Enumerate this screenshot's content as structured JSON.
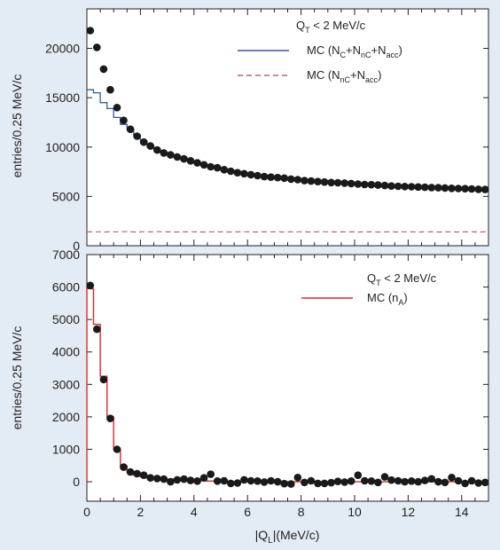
{
  "chart_data": [
    {
      "type": "scatter",
      "ylabel": "entries/0.25 MeV/c",
      "xlim": [
        0,
        15
      ],
      "ylim": [
        0,
        24000
      ],
      "yticks": [
        0,
        5000,
        10000,
        15000,
        20000
      ],
      "annotation": {
        "q": "Q",
        "sub": "T",
        "rest": " < 2 MeV/c"
      },
      "legend": [
        {
          "color": "#2e5aa8",
          "style": "solid",
          "parts": [
            [
              "MC (N",
              ""
            ],
            [
              "C",
              "sub"
            ],
            [
              "+N",
              ""
            ],
            [
              "nC",
              "sub"
            ],
            [
              "+N",
              ""
            ],
            [
              "acc",
              "sub"
            ],
            [
              ")",
              ""
            ]
          ]
        },
        {
          "color": "#c05a8c",
          "style": "dashed",
          "parts": [
            [
              "MC (N",
              ""
            ],
            [
              "nC",
              "sub"
            ],
            [
              "+N",
              ""
            ],
            [
              "acc",
              "sub"
            ],
            [
              ")",
              ""
            ]
          ]
        }
      ],
      "points": {
        "x": [
          0.125,
          0.375,
          0.625,
          0.875,
          1.125,
          1.375,
          1.625,
          1.875,
          2.125,
          2.375,
          2.625,
          2.875,
          3.125,
          3.375,
          3.625,
          3.875,
          4.125,
          4.375,
          4.625,
          4.875,
          5.125,
          5.375,
          5.625,
          5.875,
          6.125,
          6.375,
          6.625,
          6.875,
          7.125,
          7.375,
          7.625,
          7.875,
          8.125,
          8.375,
          8.625,
          8.875,
          9.125,
          9.375,
          9.625,
          9.875,
          10.125,
          10.375,
          10.625,
          10.875,
          11.125,
          11.375,
          11.625,
          11.875,
          12.125,
          12.375,
          12.625,
          12.875,
          13.125,
          13.375,
          13.625,
          13.875,
          14.125,
          14.375,
          14.625,
          14.875
        ],
        "y": [
          21800,
          20100,
          17900,
          15800,
          14000,
          12700,
          11800,
          11100,
          10500,
          10100,
          9700,
          9400,
          9200,
          9000,
          8800,
          8600,
          8400,
          8200,
          8000,
          7900,
          7700,
          7550,
          7400,
          7300,
          7200,
          7100,
          7000,
          6950,
          6900,
          6850,
          6750,
          6700,
          6600,
          6550,
          6500,
          6450,
          6400,
          6380,
          6350,
          6300,
          6250,
          6200,
          6180,
          6150,
          6100,
          6050,
          6020,
          6000,
          5980,
          5950,
          5920,
          5900,
          5880,
          5850,
          5820,
          5800,
          5780,
          5750,
          5720,
          5700
        ]
      },
      "mc_total": [
        15800,
        15500,
        14500,
        13900,
        13000,
        12300,
        11800,
        11200,
        10600,
        10100,
        9700,
        9400,
        9200,
        9000,
        8800,
        8600,
        8400,
        8200,
        8050,
        7900,
        7750,
        7600,
        7450,
        7300,
        7200,
        7100,
        7000,
        6950,
        6900,
        6850,
        6750,
        6700,
        6600,
        6550,
        6500,
        6450,
        6400,
        6380,
        6350,
        6300,
        6250,
        6200,
        6180,
        6150,
        6100,
        6050,
        6020,
        6000,
        5980,
        5950,
        5920,
        5900,
        5880,
        5850,
        5820,
        5800,
        5780,
        5750,
        5720,
        5700
      ],
      "mc_bkg": [
        1400,
        1410,
        1390,
        1400,
        1410,
        1420,
        1400,
        1390,
        1410,
        1400,
        1420,
        1410,
        1400,
        1390,
        1400,
        1410,
        1400,
        1390,
        1410,
        1400,
        1400,
        1390,
        1400,
        1410,
        1400,
        1390,
        1400,
        1410,
        1400,
        1390,
        1400,
        1410,
        1400,
        1390,
        1400,
        1410,
        1400,
        1390,
        1400,
        1400,
        1390,
        1410,
        1400,
        1390,
        1400,
        1400,
        1390,
        1410,
        1400,
        1390,
        1400,
        1400,
        1390,
        1400,
        1410,
        1390,
        1400,
        1400,
        1390,
        1400
      ]
    },
    {
      "type": "scatter",
      "xlabel": "|Q_L|(MeV/c)",
      "xlabel_parts": [
        [
          "|Q",
          ""
        ],
        [
          "L",
          "sub"
        ],
        [
          "|(MeV/c)",
          ""
        ]
      ],
      "ylabel": "entries/0.25 MeV/c",
      "xlim": [
        0,
        15
      ],
      "ylim": [
        -600,
        7000
      ],
      "xticks": [
        0,
        2,
        4,
        6,
        8,
        10,
        12,
        14
      ],
      "yticks": [
        0,
        1000,
        2000,
        3000,
        4000,
        5000,
        6000,
        7000
      ],
      "annotation": {
        "q": "Q",
        "sub": "T",
        "rest": " < 2 MeV/c"
      },
      "legend": [
        {
          "color": "#e1262e",
          "style": "solid",
          "parts": [
            [
              "MC (n",
              ""
            ],
            [
              "A",
              "sub"
            ],
            [
              ")",
              ""
            ]
          ]
        }
      ],
      "points": {
        "x": [
          0.125,
          0.375,
          0.625,
          0.875,
          1.125,
          1.375,
          1.625,
          1.875,
          2.125,
          2.375,
          2.625,
          2.875,
          3.125,
          3.375,
          3.625,
          3.875,
          4.125,
          4.375,
          4.625,
          4.875,
          5.125,
          5.375,
          5.625,
          5.875,
          6.125,
          6.375,
          6.625,
          6.875,
          7.125,
          7.375,
          7.625,
          7.875,
          8.125,
          8.375,
          8.625,
          8.875,
          9.125,
          9.375,
          9.625,
          9.875,
          10.125,
          10.375,
          10.625,
          10.875,
          11.125,
          11.375,
          11.625,
          11.875,
          12.125,
          12.375,
          12.625,
          12.875,
          13.125,
          13.375,
          13.625,
          13.875,
          14.125,
          14.375,
          14.625,
          14.875
        ],
        "y": [
          6050,
          4700,
          3150,
          1950,
          1000,
          450,
          300,
          250,
          200,
          120,
          100,
          80,
          0,
          60,
          80,
          40,
          20,
          120,
          230,
          20,
          30,
          -50,
          -40,
          60,
          30,
          20,
          -10,
          30,
          0,
          -60,
          -70,
          130,
          -20,
          30,
          -50,
          -50,
          -30,
          10,
          -10,
          20,
          200,
          30,
          20,
          -20,
          150,
          50,
          30,
          0,
          20,
          0,
          40,
          90,
          0,
          -20,
          130,
          30,
          -50,
          30,
          -40,
          -20
        ]
      },
      "mc": [
        5950,
        4850,
        3250,
        2000,
        1000,
        480,
        300,
        200,
        150,
        110,
        100,
        90,
        80,
        70,
        60,
        50,
        40,
        30,
        20,
        10,
        5,
        0,
        0,
        0,
        0,
        0,
        0,
        0,
        0,
        0,
        0,
        0,
        0,
        0,
        0,
        0,
        0,
        0,
        0,
        0,
        0,
        0,
        0,
        0,
        0,
        0,
        0,
        0,
        0,
        0,
        0,
        0,
        0,
        0,
        0,
        0,
        0,
        0,
        0,
        0
      ]
    }
  ]
}
